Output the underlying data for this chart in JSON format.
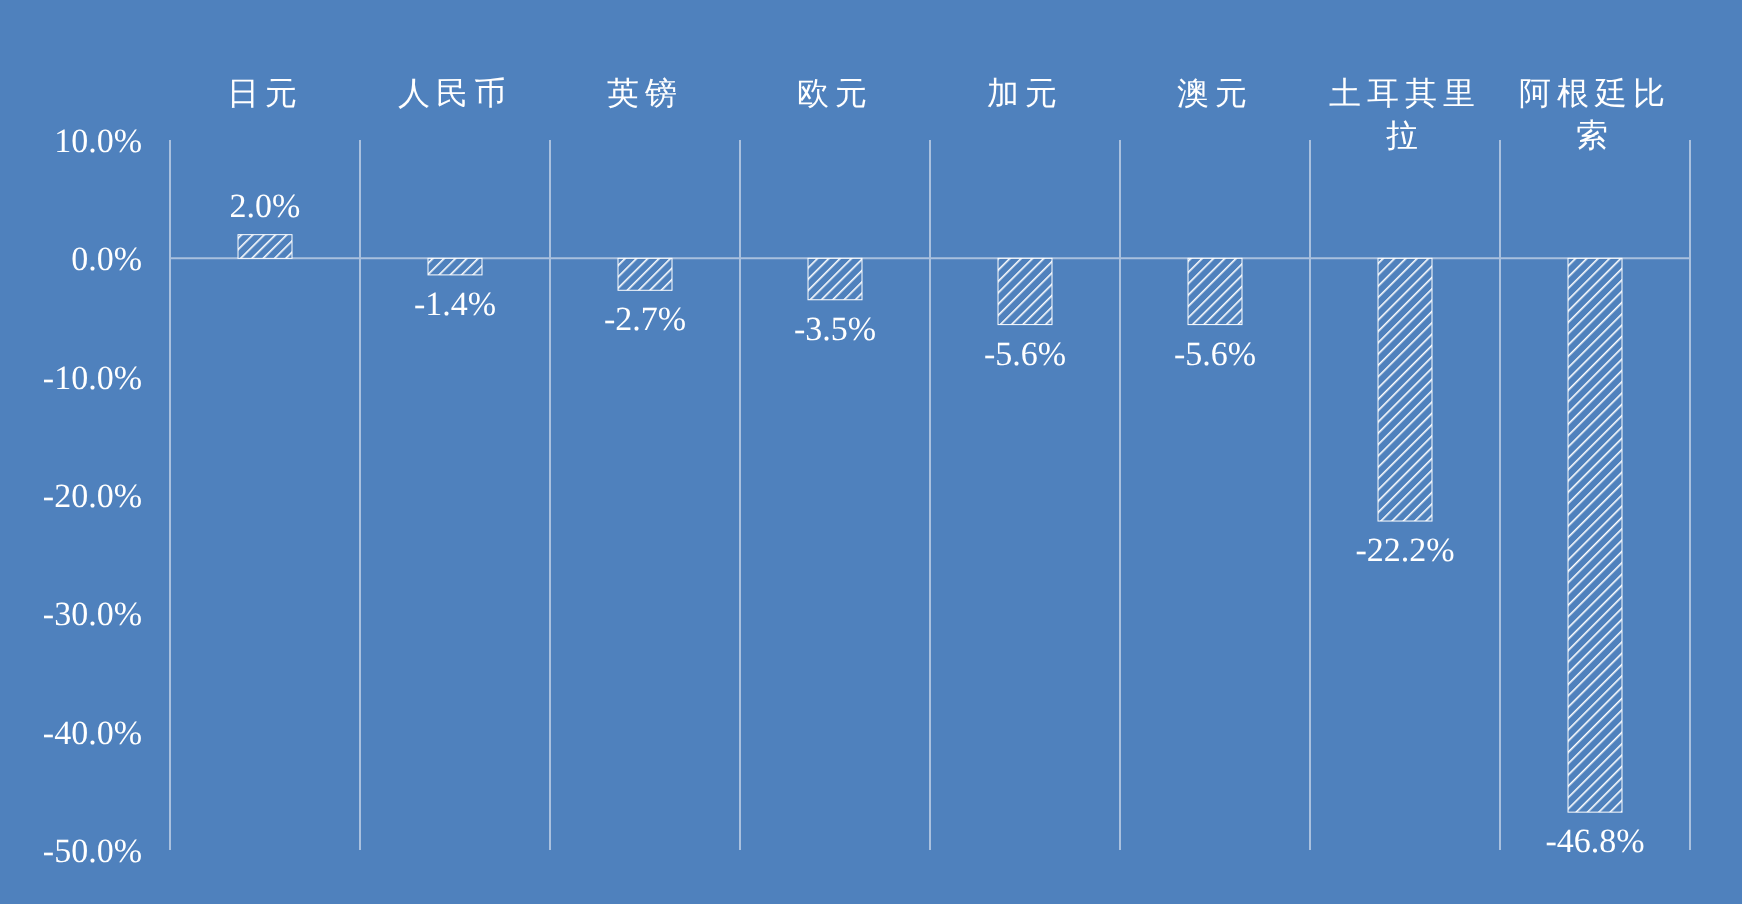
{
  "chart_data": {
    "type": "bar",
    "categories": [
      "日元",
      "人民币",
      "英镑",
      "欧元",
      "加元",
      "澳元",
      "土耳其里拉",
      "阿根廷比索"
    ],
    "series": [
      {
        "color": "#ffffff",
        "values": [
          2.0,
          -1.4,
          -2.7,
          -3.5,
          -5.6,
          -5.6,
          -22.2,
          -46.8
        ],
        "value_labels": [
          "2.0%",
          "-1.4%",
          "-2.7%",
          "-3.5%",
          "-5.6%",
          "-5.6%",
          "-22.2%",
          "-46.8%"
        ]
      }
    ],
    "ylim": [
      -50,
      10
    ],
    "yticks": [
      {
        "value": 10,
        "label": "10.0%"
      },
      {
        "value": 0,
        "label": "0.0%"
      },
      {
        "value": -10,
        "label": "-10.0%"
      },
      {
        "value": -20,
        "label": "-20.0%"
      },
      {
        "value": -30,
        "label": "-30.0%"
      },
      {
        "value": -40,
        "label": "-40.0%"
      },
      {
        "value": -50,
        "label": "-50.0%"
      }
    ]
  }
}
